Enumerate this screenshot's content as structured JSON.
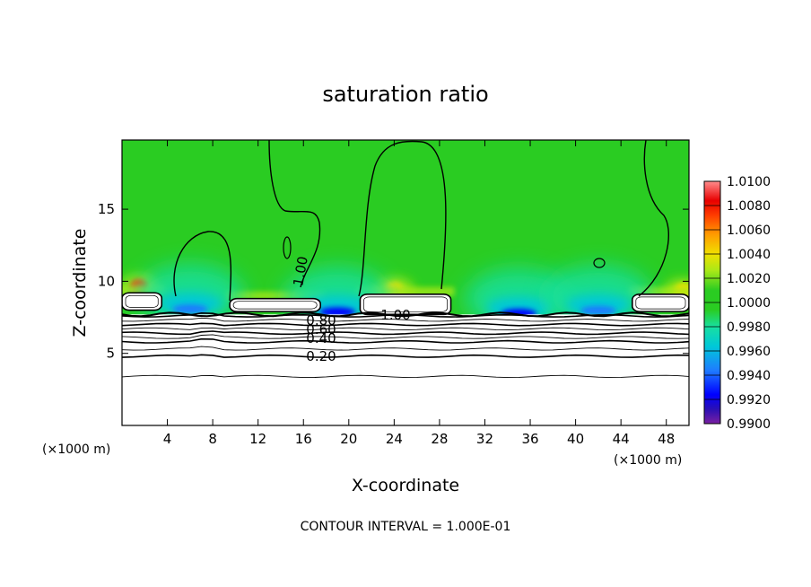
{
  "chart_data": {
    "type": "heatmap",
    "title": "saturation ratio",
    "xlabel": "X-coordinate",
    "ylabel": "Z-coordinate",
    "x_unit": "(×1000 m)",
    "y_unit": "(×1000 m)",
    "xlim": [
      0,
      50
    ],
    "ylim": [
      0,
      19.8
    ],
    "x_ticks": [
      "4",
      "8",
      "12",
      "16",
      "20",
      "24",
      "28",
      "32",
      "36",
      "40",
      "44",
      "48"
    ],
    "y_ticks": [
      "5",
      "10",
      "15"
    ],
    "x_tick_values": [
      4,
      8,
      12,
      16,
      20,
      24,
      28,
      32,
      36,
      40,
      44,
      48
    ],
    "y_tick_values": [
      5,
      10,
      15
    ],
    "colorbar": {
      "range": [
        0.99,
        1.01
      ],
      "ticks": [
        "1.0100",
        "1.0080",
        "1.0060",
        "1.0040",
        "1.0020",
        "1.0000",
        "0.9980",
        "0.9960",
        "0.9940",
        "0.9920",
        "0.9900"
      ],
      "tick_values": [
        1.01,
        1.008,
        1.006,
        1.004,
        1.002,
        1.0,
        0.998,
        0.996,
        0.994,
        0.992,
        0.99
      ],
      "colors": [
        "#7a1fa2",
        "#2a0fb5",
        "#0000ff",
        "#1e7cff",
        "#00c8d8",
        "#18e0a0",
        "#2acc22",
        "#a8e818",
        "#f0e000",
        "#ff9c00",
        "#ff3c00",
        "#e80000",
        "#ff8c8c"
      ]
    },
    "contour_labels": [
      "1.00",
      "1.00",
      "0.80",
      "0.60",
      "0.40",
      "0.20"
    ],
    "contour_label_values": [
      1.0,
      1.0,
      0.8,
      0.6,
      0.4,
      0.2
    ],
    "contour_interval": "CONTOUR INTERVAL = 1.000E-01",
    "subsaturated_layer_top_z": 7.7,
    "stratiform_lines_z": [
      7.6,
      7.3,
      7.0,
      6.7,
      6.4,
      6.1,
      5.8,
      5.3,
      4.8,
      3.4
    ],
    "cloud_blocks": [
      {
        "x": [
          0,
          3.5
        ],
        "z": [
          8.0,
          9.2
        ]
      },
      {
        "x": [
          9.5,
          17.5
        ],
        "z": [
          7.9,
          8.8
        ]
      },
      {
        "x": [
          21.0,
          29.0
        ],
        "z": [
          7.7,
          9.1
        ]
      },
      {
        "x": [
          45.0,
          50.0
        ],
        "z": [
          7.9,
          9.1
        ]
      }
    ],
    "warm_spots": [
      {
        "x": 1.5,
        "z": 9.6,
        "value": 1.006
      },
      {
        "x": 24.0,
        "z": 9.4,
        "value": 1.004
      },
      {
        "x": 49.5,
        "z": 9.3,
        "value": 1.004
      }
    ],
    "cool_spots": [
      {
        "x": 6.0,
        "z": 8.2,
        "value": 0.9955
      },
      {
        "x": 19.0,
        "z": 8.0,
        "value": 0.994
      },
      {
        "x": 35.0,
        "z": 7.9,
        "value": 0.9935
      },
      {
        "x": 42.0,
        "z": 8.1,
        "value": 0.9955
      }
    ]
  }
}
